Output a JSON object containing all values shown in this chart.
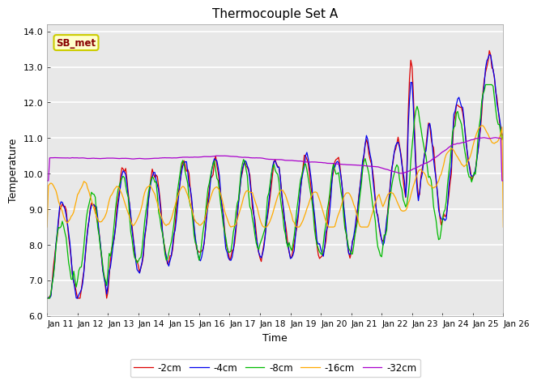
{
  "title": "Thermocouple Set A",
  "xlabel": "Time",
  "ylabel": "Temperature",
  "ylim": [
    6.0,
    14.2
  ],
  "xlim": [
    0,
    360
  ],
  "bg_color": "#e8e8e8",
  "fig_color": "#ffffff",
  "grid_color": "#ffffff",
  "annotation_text": "SB_met",
  "annotation_bg": "#ffffcc",
  "annotation_edge": "#cccc00",
  "annotation_text_color": "#880000",
  "series_colors": [
    "#dd0000",
    "#0000ee",
    "#00bb00",
    "#ffaa00",
    "#aa00cc"
  ],
  "series_labels": [
    "-2cm",
    "-4cm",
    "-8cm",
    "-16cm",
    "-32cm"
  ],
  "tick_labels": [
    "Jan 11",
    "Jan 12",
    "Jan 13",
    "Jan 14",
    "Jan 15",
    "Jan 16",
    "Jan 17",
    "Jan 18",
    "Jan 19",
    "Jan 20",
    "Jan 21",
    "Jan 22",
    "Jan 23",
    "Jan 24",
    "Jan 25",
    "Jan 26"
  ],
  "tick_positions": [
    0,
    24,
    48,
    72,
    96,
    120,
    144,
    168,
    192,
    216,
    240,
    264,
    288,
    312,
    336,
    360
  ]
}
